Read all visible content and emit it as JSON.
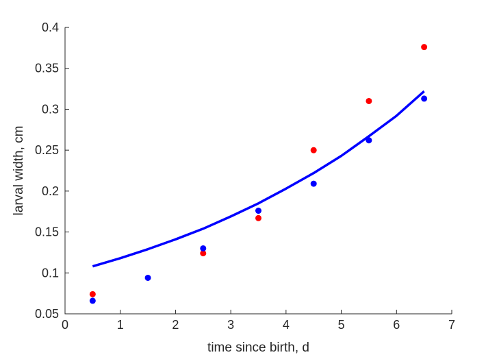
{
  "chart_data": {
    "type": "scatter",
    "xlabel": "time since birth, d",
    "ylabel": "larval width, cm",
    "xlim": [
      0,
      7
    ],
    "ylim": [
      0.05,
      0.4
    ],
    "xticks": [
      "0",
      "1",
      "2",
      "3",
      "4",
      "5",
      "6",
      "7"
    ],
    "yticks": [
      "0.05",
      "0.1",
      "0.15",
      "0.2",
      "0.25",
      "0.3",
      "0.35",
      "0.4"
    ],
    "grid": false,
    "series": [
      {
        "kind": "scatter",
        "color": "#ff0000",
        "x": [
          0.5,
          2.5,
          3.5,
          4.5,
          5.5,
          6.5
        ],
        "y": [
          0.074,
          0.124,
          0.167,
          0.25,
          0.31,
          0.376
        ]
      },
      {
        "kind": "scatter",
        "color": "#0000ff",
        "x": [
          0.5,
          1.5,
          2.5,
          3.5,
          4.5,
          5.5,
          6.5
        ],
        "y": [
          0.066,
          0.094,
          0.13,
          0.176,
          0.209,
          0.262,
          0.313
        ]
      },
      {
        "kind": "line",
        "color": "#0000ff",
        "x": [
          0.5,
          1.0,
          1.5,
          2.0,
          2.5,
          3.0,
          3.5,
          4.0,
          4.5,
          5.0,
          5.5,
          6.0,
          6.5
        ],
        "y": [
          0.108,
          0.118,
          0.129,
          0.141,
          0.154,
          0.169,
          0.185,
          0.203,
          0.222,
          0.243,
          0.267,
          0.292,
          0.322
        ]
      }
    ]
  }
}
